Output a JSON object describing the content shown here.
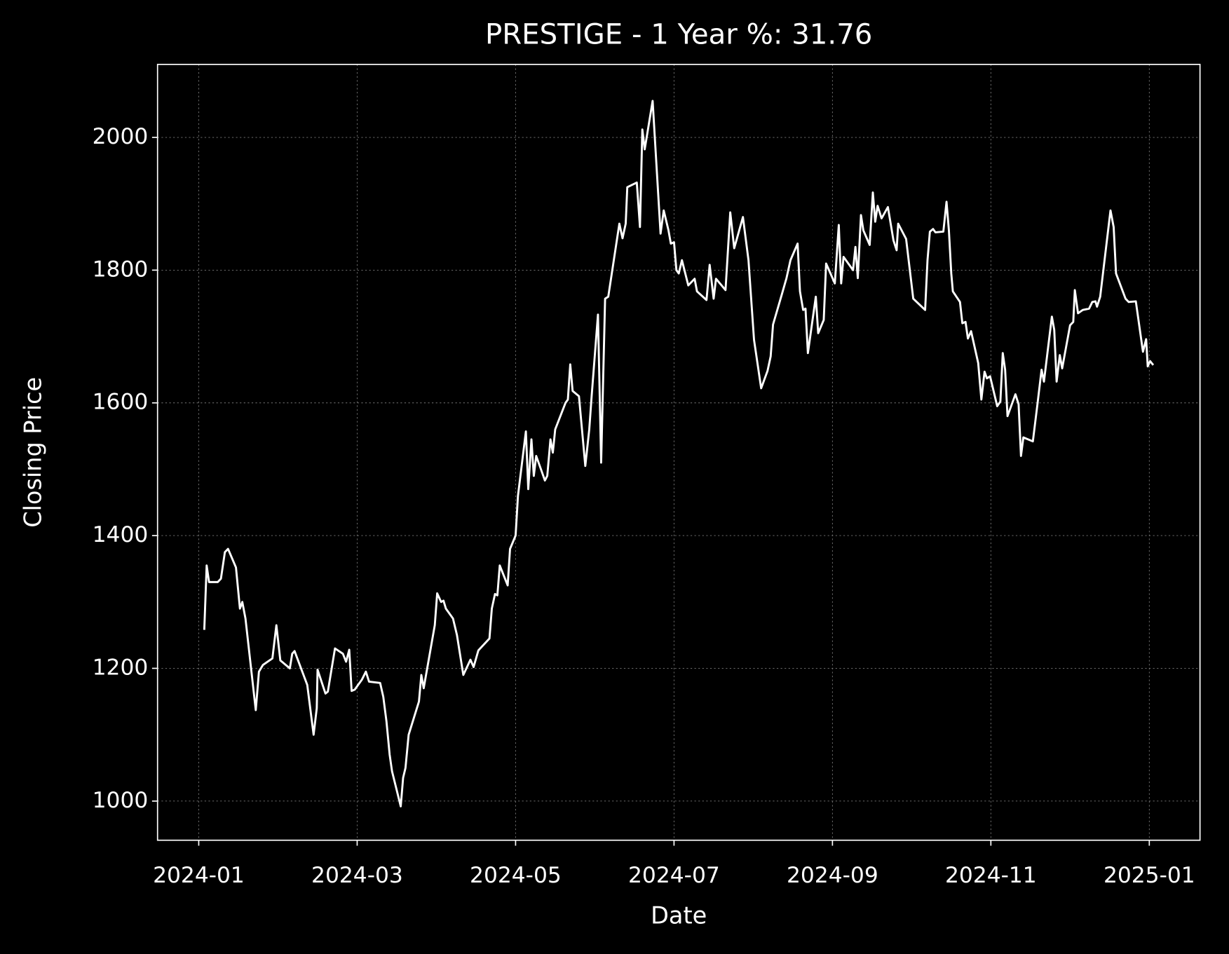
{
  "chart_data": {
    "type": "line",
    "title": "PRESTIGE - 1 Year %: 31.76",
    "xlabel": "Date",
    "ylabel": "Closing Price",
    "color": "#ffffff",
    "grid": true,
    "xlim": [
      -0.52,
      12.64
    ],
    "xticks": [
      {
        "value": 0,
        "label": "2024-01"
      },
      {
        "value": 2,
        "label": "2024-03"
      },
      {
        "value": 4,
        "label": "2024-05"
      },
      {
        "value": 6,
        "label": "2024-07"
      },
      {
        "value": 8,
        "label": "2024-09"
      },
      {
        "value": 10,
        "label": "2024-11"
      },
      {
        "value": 12,
        "label": "2025-01"
      }
    ],
    "ylim": [
      941,
      2110
    ],
    "yticks": [
      1000,
      1200,
      1400,
      1600,
      1800,
      2000
    ],
    "x": [
      0.07,
      0.1,
      0.13,
      0.24,
      0.28,
      0.33,
      0.37,
      0.47,
      0.52,
      0.55,
      0.59,
      0.72,
      0.76,
      0.81,
      0.93,
      0.98,
      1.03,
      1.15,
      1.18,
      1.21,
      1.26,
      1.37,
      1.45,
      1.49,
      1.5,
      1.6,
      1.63,
      1.72,
      1.82,
      1.86,
      1.9,
      1.93,
      1.97,
      2.06,
      2.11,
      2.15,
      2.29,
      2.33,
      2.37,
      2.41,
      2.44,
      2.55,
      2.58,
      2.61,
      2.65,
      2.78,
      2.81,
      2.84,
      2.98,
      3.01,
      3.06,
      3.09,
      3.12,
      3.21,
      3.26,
      3.34,
      3.43,
      3.47,
      3.53,
      3.67,
      3.7,
      3.74,
      3.77,
      3.8,
      3.9,
      3.93,
      4.0,
      4.03,
      4.13,
      4.16,
      4.2,
      4.23,
      4.26,
      4.32,
      4.37,
      4.4,
      4.44,
      4.47,
      4.5,
      4.63,
      4.66,
      4.69,
      4.72,
      4.8,
      4.88,
      4.93,
      4.96,
      5.04,
      5.08,
      5.13,
      5.17,
      5.31,
      5.35,
      5.39,
      5.41,
      5.53,
      5.57,
      5.6,
      5.63,
      5.73,
      5.83,
      5.87,
      5.93,
      5.96,
      6.0,
      6.03,
      6.06,
      6.1,
      6.18,
      6.26,
      6.29,
      6.41,
      6.45,
      6.5,
      6.53,
      6.65,
      6.71,
      6.76,
      6.87,
      6.94,
      7.01,
      7.1,
      7.18,
      7.22,
      7.25,
      7.36,
      7.42,
      7.47,
      7.56,
      7.59,
      7.63,
      7.66,
      7.69,
      7.79,
      7.82,
      7.89,
      7.92,
      8.03,
      8.08,
      8.11,
      8.14,
      8.26,
      8.29,
      8.32,
      8.36,
      8.39,
      8.47,
      8.51,
      8.54,
      8.57,
      8.62,
      8.7,
      8.77,
      8.81,
      8.83,
      8.93,
      9.02,
      9.17,
      9.2,
      9.23,
      9.27,
      9.3,
      9.4,
      9.44,
      9.47,
      9.5,
      9.52,
      9.61,
      9.64,
      9.68,
      9.71,
      9.75,
      9.84,
      9.88,
      9.92,
      9.95,
      9.99,
      10.08,
      10.12,
      10.15,
      10.18,
      10.21,
      10.31,
      10.35,
      10.38,
      10.41,
      10.53,
      10.59,
      10.64,
      10.67,
      10.77,
      10.8,
      10.83,
      10.87,
      10.9,
      11.0,
      11.04,
      11.06,
      11.1,
      11.16,
      11.24,
      11.28,
      11.32,
      11.34,
      11.38,
      11.51,
      11.55,
      11.58,
      11.7,
      11.74,
      11.83,
      11.92,
      11.96,
      11.98,
      12.01,
      12.05
    ],
    "values": [
      1258,
      1355,
      1330,
      1330,
      1335,
      1375,
      1380,
      1352,
      1290,
      1300,
      1275,
      1137,
      1195,
      1205,
      1215,
      1265,
      1212,
      1200,
      1222,
      1226,
      1210,
      1175,
      1100,
      1140,
      1198,
      1162,
      1165,
      1230,
      1222,
      1210,
      1228,
      1166,
      1168,
      1183,
      1195,
      1180,
      1178,
      1157,
      1120,
      1070,
      1045,
      992,
      1035,
      1050,
      1100,
      1150,
      1190,
      1170,
      1265,
      1313,
      1300,
      1302,
      1290,
      1275,
      1250,
      1190,
      1213,
      1202,
      1227,
      1245,
      1290,
      1312,
      1310,
      1355,
      1325,
      1380,
      1400,
      1460,
      1557,
      1470,
      1545,
      1490,
      1520,
      1500,
      1483,
      1490,
      1545,
      1525,
      1560,
      1600,
      1605,
      1658,
      1618,
      1610,
      1505,
      1560,
      1610,
      1733,
      1510,
      1757,
      1760,
      1870,
      1848,
      1870,
      1925,
      1932,
      1865,
      2012,
      1982,
      2055,
      1855,
      1890,
      1860,
      1840,
      1842,
      1800,
      1795,
      1815,
      1777,
      1787,
      1768,
      1755,
      1808,
      1757,
      1787,
      1770,
      1887,
      1833,
      1880,
      1815,
      1695,
      1622,
      1648,
      1670,
      1718,
      1763,
      1788,
      1815,
      1840,
      1768,
      1740,
      1742,
      1675,
      1760,
      1705,
      1725,
      1810,
      1780,
      1868,
      1780,
      1820,
      1800,
      1835,
      1788,
      1883,
      1860,
      1838,
      1917,
      1873,
      1897,
      1878,
      1895,
      1845,
      1830,
      1870,
      1847,
      1757,
      1740,
      1815,
      1858,
      1862,
      1857,
      1858,
      1903,
      1860,
      1795,
      1768,
      1752,
      1720,
      1722,
      1697,
      1708,
      1660,
      1605,
      1647,
      1637,
      1640,
      1595,
      1602,
      1675,
      1650,
      1580,
      1613,
      1598,
      1520,
      1548,
      1542,
      1600,
      1650,
      1632,
      1730,
      1710,
      1632,
      1672,
      1652,
      1717,
      1722,
      1770,
      1735,
      1740,
      1742,
      1752,
      1753,
      1745,
      1760,
      1890,
      1865,
      1795,
      1757,
      1752,
      1753,
      1677,
      1696,
      1655,
      1663,
      1657
    ]
  }
}
